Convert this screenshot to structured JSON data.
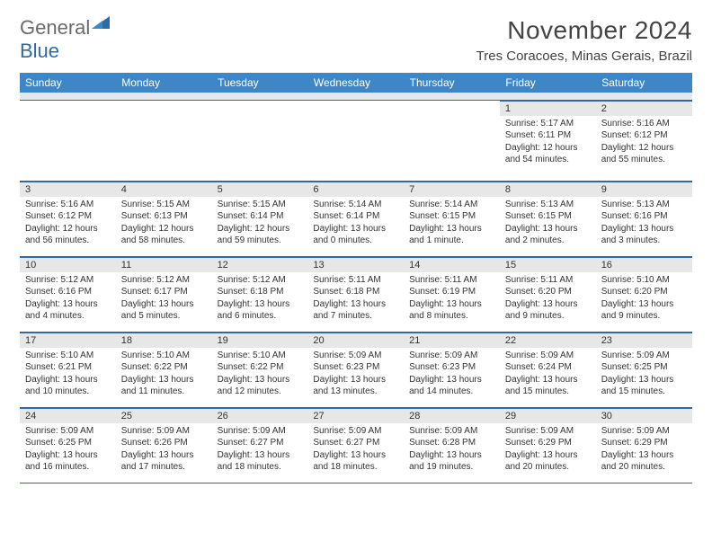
{
  "logo": {
    "general": "General",
    "blue": "Blue"
  },
  "title": "November 2024",
  "location": "Tres Coracoes, Minas Gerais, Brazil",
  "colors": {
    "header_bg": "#3d87c9",
    "header_text": "#ffffff",
    "rule": "#2f6aa6",
    "daynum_bg": "#e7e7e7",
    "logo_gray": "#6a6a6a",
    "logo_blue": "#2f6aa6"
  },
  "day_labels": [
    "Sunday",
    "Monday",
    "Tuesday",
    "Wednesday",
    "Thursday",
    "Friday",
    "Saturday"
  ],
  "weeks": [
    [
      null,
      null,
      null,
      null,
      null,
      {
        "n": "1",
        "sunrise": "5:17 AM",
        "sunset": "6:11 PM",
        "daylight": "12 hours and 54 minutes."
      },
      {
        "n": "2",
        "sunrise": "5:16 AM",
        "sunset": "6:12 PM",
        "daylight": "12 hours and 55 minutes."
      }
    ],
    [
      {
        "n": "3",
        "sunrise": "5:16 AM",
        "sunset": "6:12 PM",
        "daylight": "12 hours and 56 minutes."
      },
      {
        "n": "4",
        "sunrise": "5:15 AM",
        "sunset": "6:13 PM",
        "daylight": "12 hours and 58 minutes."
      },
      {
        "n": "5",
        "sunrise": "5:15 AM",
        "sunset": "6:14 PM",
        "daylight": "12 hours and 59 minutes."
      },
      {
        "n": "6",
        "sunrise": "5:14 AM",
        "sunset": "6:14 PM",
        "daylight": "13 hours and 0 minutes."
      },
      {
        "n": "7",
        "sunrise": "5:14 AM",
        "sunset": "6:15 PM",
        "daylight": "13 hours and 1 minute."
      },
      {
        "n": "8",
        "sunrise": "5:13 AM",
        "sunset": "6:15 PM",
        "daylight": "13 hours and 2 minutes."
      },
      {
        "n": "9",
        "sunrise": "5:13 AM",
        "sunset": "6:16 PM",
        "daylight": "13 hours and 3 minutes."
      }
    ],
    [
      {
        "n": "10",
        "sunrise": "5:12 AM",
        "sunset": "6:16 PM",
        "daylight": "13 hours and 4 minutes."
      },
      {
        "n": "11",
        "sunrise": "5:12 AM",
        "sunset": "6:17 PM",
        "daylight": "13 hours and 5 minutes."
      },
      {
        "n": "12",
        "sunrise": "5:12 AM",
        "sunset": "6:18 PM",
        "daylight": "13 hours and 6 minutes."
      },
      {
        "n": "13",
        "sunrise": "5:11 AM",
        "sunset": "6:18 PM",
        "daylight": "13 hours and 7 minutes."
      },
      {
        "n": "14",
        "sunrise": "5:11 AM",
        "sunset": "6:19 PM",
        "daylight": "13 hours and 8 minutes."
      },
      {
        "n": "15",
        "sunrise": "5:11 AM",
        "sunset": "6:20 PM",
        "daylight": "13 hours and 9 minutes."
      },
      {
        "n": "16",
        "sunrise": "5:10 AM",
        "sunset": "6:20 PM",
        "daylight": "13 hours and 9 minutes."
      }
    ],
    [
      {
        "n": "17",
        "sunrise": "5:10 AM",
        "sunset": "6:21 PM",
        "daylight": "13 hours and 10 minutes."
      },
      {
        "n": "18",
        "sunrise": "5:10 AM",
        "sunset": "6:22 PM",
        "daylight": "13 hours and 11 minutes."
      },
      {
        "n": "19",
        "sunrise": "5:10 AM",
        "sunset": "6:22 PM",
        "daylight": "13 hours and 12 minutes."
      },
      {
        "n": "20",
        "sunrise": "5:09 AM",
        "sunset": "6:23 PM",
        "daylight": "13 hours and 13 minutes."
      },
      {
        "n": "21",
        "sunrise": "5:09 AM",
        "sunset": "6:23 PM",
        "daylight": "13 hours and 14 minutes."
      },
      {
        "n": "22",
        "sunrise": "5:09 AM",
        "sunset": "6:24 PM",
        "daylight": "13 hours and 15 minutes."
      },
      {
        "n": "23",
        "sunrise": "5:09 AM",
        "sunset": "6:25 PM",
        "daylight": "13 hours and 15 minutes."
      }
    ],
    [
      {
        "n": "24",
        "sunrise": "5:09 AM",
        "sunset": "6:25 PM",
        "daylight": "13 hours and 16 minutes."
      },
      {
        "n": "25",
        "sunrise": "5:09 AM",
        "sunset": "6:26 PM",
        "daylight": "13 hours and 17 minutes."
      },
      {
        "n": "26",
        "sunrise": "5:09 AM",
        "sunset": "6:27 PM",
        "daylight": "13 hours and 18 minutes."
      },
      {
        "n": "27",
        "sunrise": "5:09 AM",
        "sunset": "6:27 PM",
        "daylight": "13 hours and 18 minutes."
      },
      {
        "n": "28",
        "sunrise": "5:09 AM",
        "sunset": "6:28 PM",
        "daylight": "13 hours and 19 minutes."
      },
      {
        "n": "29",
        "sunrise": "5:09 AM",
        "sunset": "6:29 PM",
        "daylight": "13 hours and 20 minutes."
      },
      {
        "n": "30",
        "sunrise": "5:09 AM",
        "sunset": "6:29 PM",
        "daylight": "13 hours and 20 minutes."
      }
    ]
  ],
  "labels": {
    "sunrise": "Sunrise:",
    "sunset": "Sunset:",
    "daylight": "Daylight:"
  }
}
